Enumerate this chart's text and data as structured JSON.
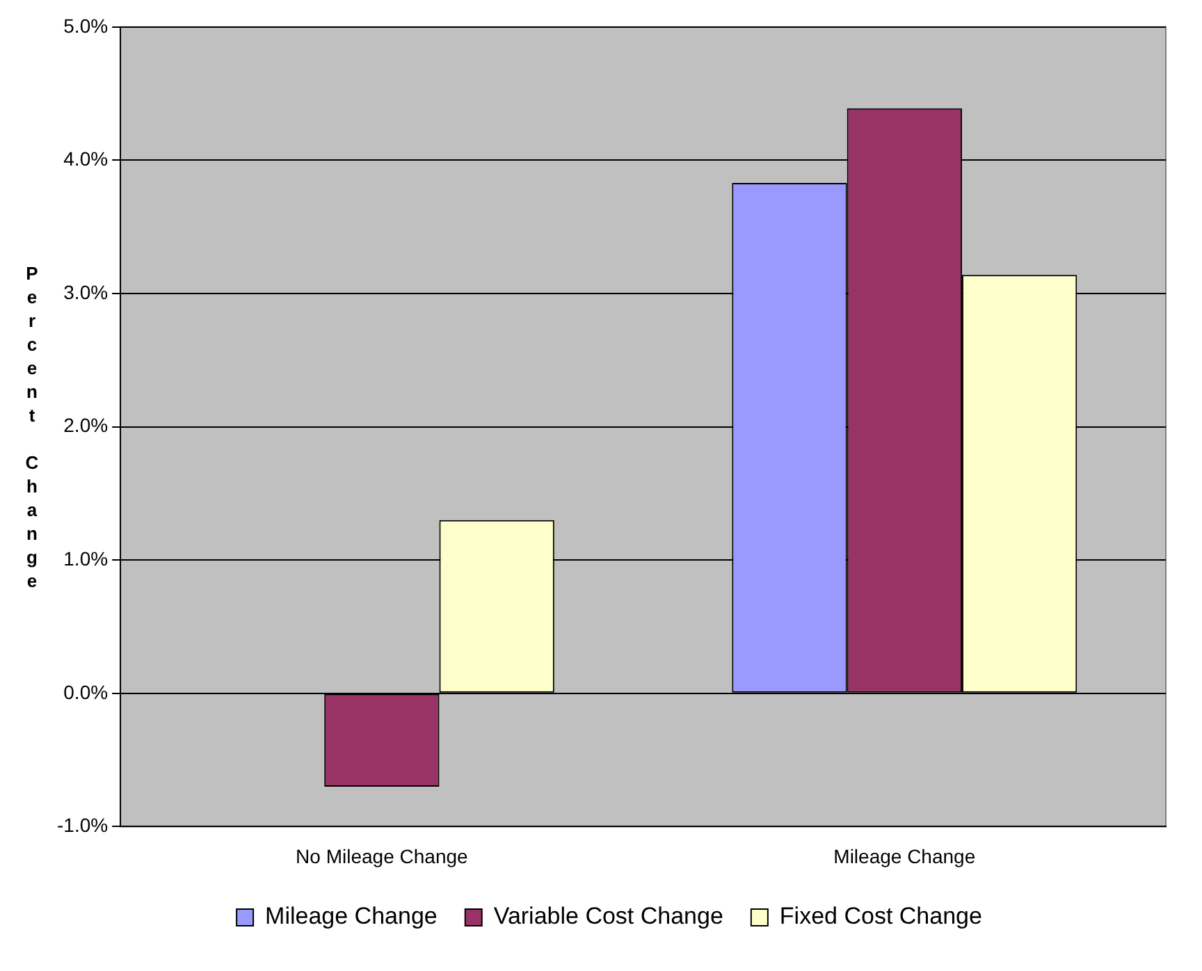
{
  "chart_data": {
    "type": "bar",
    "ylabel": "Percent Change",
    "categories": [
      "No Mileage Change",
      "Mileage Change"
    ],
    "series": [
      {
        "name": "Mileage Change",
        "color": "#9999ff",
        "values": [
          0.0,
          3.83
        ]
      },
      {
        "name": "Variable Cost Change",
        "color": "#993366",
        "values": [
          -0.7,
          4.39
        ]
      },
      {
        "name": "Fixed Cost Change",
        "color": "#ffffcc",
        "values": [
          1.3,
          3.14
        ]
      }
    ],
    "ylim": [
      -1,
      5
    ],
    "yticks": [
      {
        "value": -1,
        "label": "-1.0%"
      },
      {
        "value": 0,
        "label": "0.0%"
      },
      {
        "value": 1,
        "label": "1.0%"
      },
      {
        "value": 2,
        "label": "2.0%"
      },
      {
        "value": 3,
        "label": "3.0%"
      },
      {
        "value": 4,
        "label": "4.0%"
      },
      {
        "value": 5,
        "label": "5.0%"
      }
    ],
    "grid": "y",
    "legend": "bottom"
  }
}
